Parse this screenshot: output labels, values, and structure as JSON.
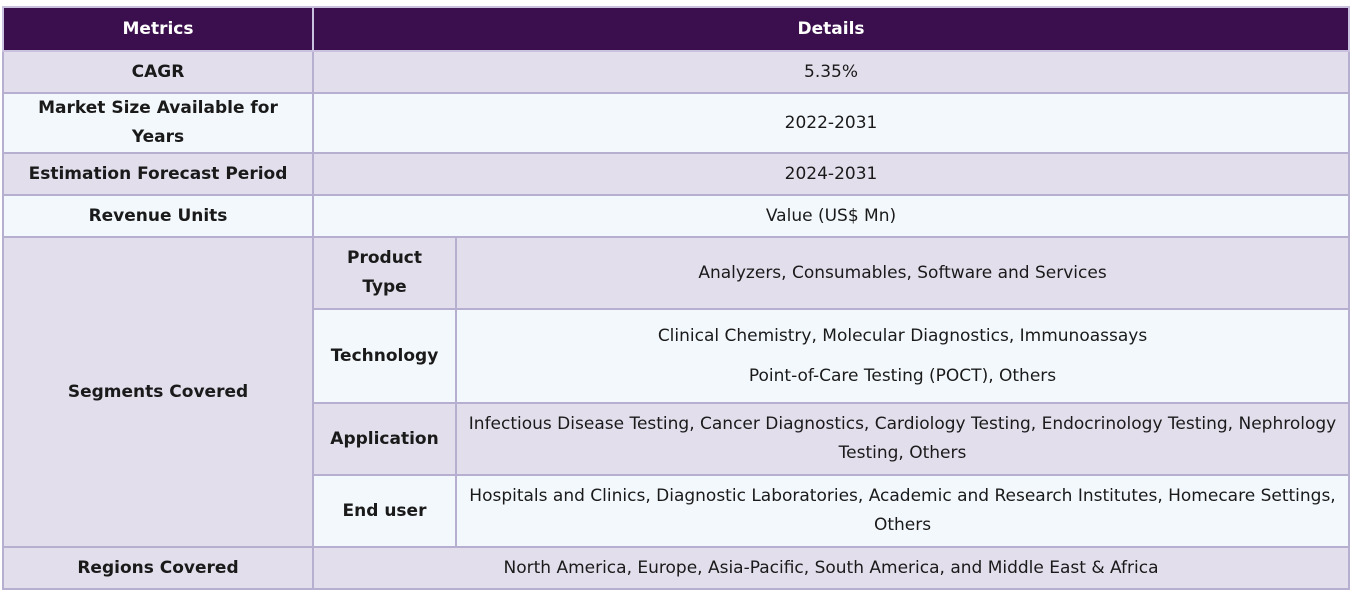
{
  "header": {
    "metrics": "Metrics",
    "details": "Details"
  },
  "rows": [
    {
      "metric": "CAGR",
      "detail": "5.35%"
    },
    {
      "metric": "Market Size Available for Years",
      "detail": "2022-2031"
    },
    {
      "metric": "Estimation Forecast Period",
      "detail": "2024-2031"
    },
    {
      "metric": "Revenue Units",
      "detail": "Value (US$ Mn)"
    }
  ],
  "segments": {
    "label": "Segments Covered",
    "items": [
      {
        "name": "Product Type",
        "detail": "Analyzers, Consumables, Software and Services"
      },
      {
        "name": "Technology",
        "detail_line1": "Clinical Chemistry, Molecular Diagnostics, Immunoassays",
        "detail_line2": "Point-of-Care Testing (POCT), Others"
      },
      {
        "name": "Application",
        "detail": "Infectious Disease Testing, Cancer Diagnostics, Cardiology Testing, Endocrinology Testing, Nephrology Testing, Others"
      },
      {
        "name": "End user",
        "detail": "Hospitals and Clinics, Diagnostic Laboratories, Academic and Research Institutes, Homecare Settings, Others"
      }
    ]
  },
  "regions": {
    "metric": "Regions Covered",
    "detail": "North America, Europe, Asia-Pacific, South America, and Middle East & Africa"
  }
}
